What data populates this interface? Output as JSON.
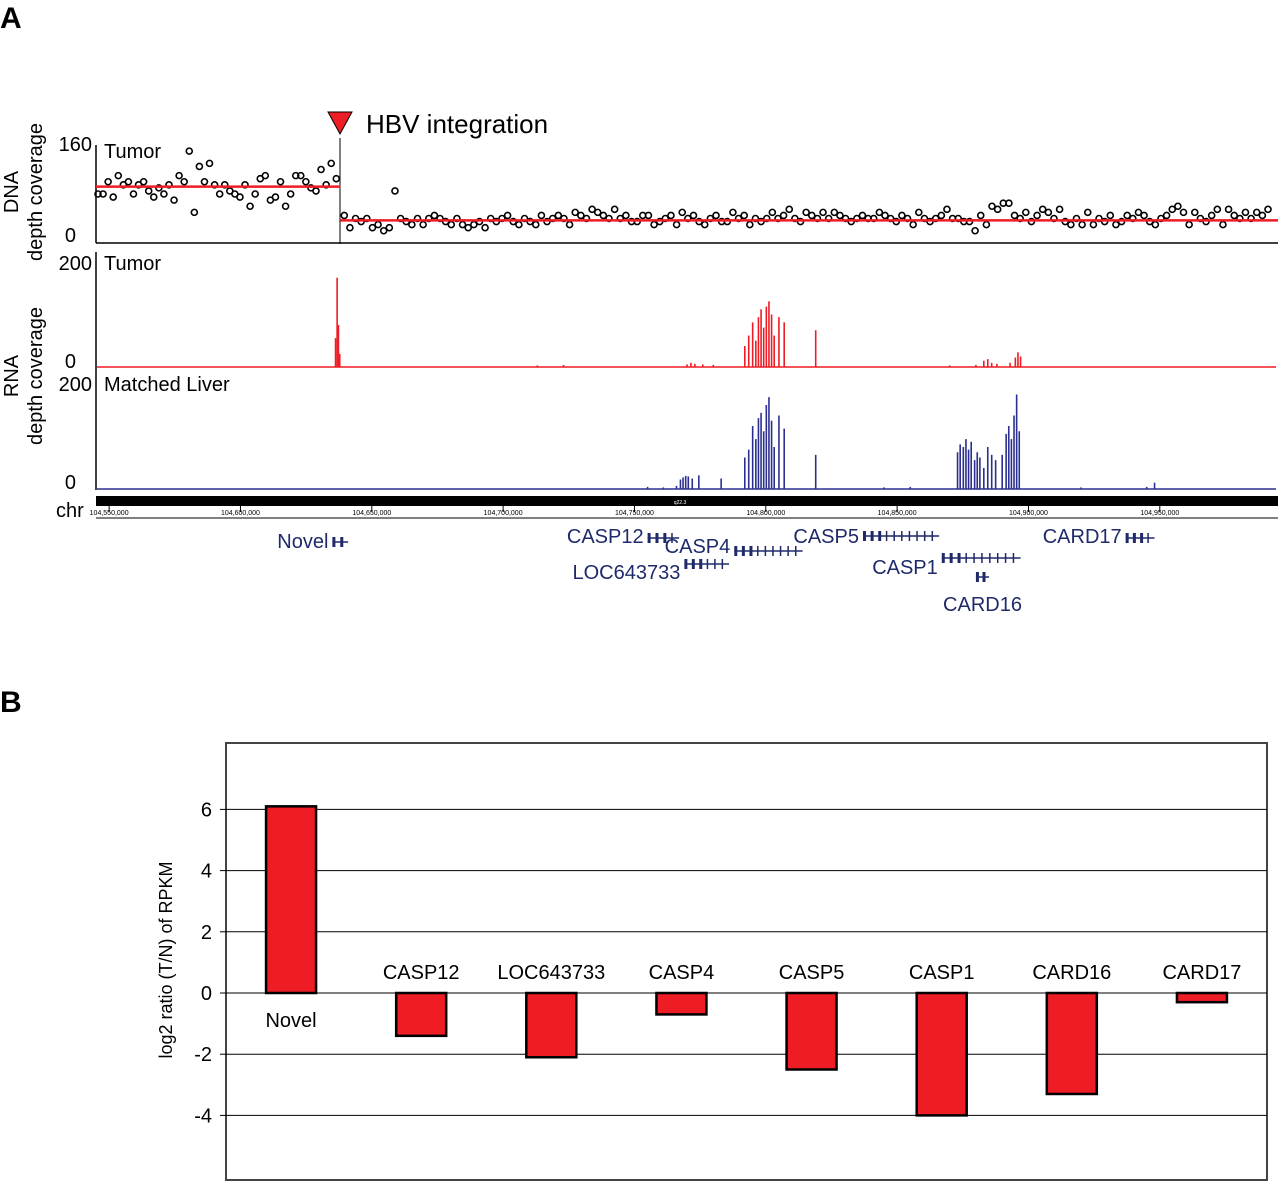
{
  "panel_a": {
    "label": "A",
    "integration_label": "HBV integration",
    "dna_axis_label_1": "DNA",
    "dna_axis_label_2": "depth coverage",
    "rna_axis_label_1": "RNA",
    "rna_axis_label_2": "depth coverage",
    "dna_tumor_label": "Tumor",
    "rna_tumor_label": "Tumor",
    "rna_liver_label": "Matched Liver",
    "chr_label": "chr",
    "band_label": "q22.3",
    "dna_ymax": "160",
    "dna_ymin": "0",
    "rna_tumor_ymax": "200",
    "rna_tumor_ymin": "0",
    "rna_liver_ymax": "200",
    "rna_liver_ymin": "0",
    "genomic_ticks": [
      "104,550,000",
      "104,600,000",
      "104,650,000",
      "104,700,000",
      "104,750,000",
      "104,800,000",
      "104,850,000",
      "104,900,000",
      "104,950,000"
    ],
    "genes": [
      {
        "name": "Novel",
        "start": 104635000,
        "end": 104641000
      },
      {
        "name": "CASP12",
        "start": 104755000,
        "end": 104767000
      },
      {
        "name": "LOC643733",
        "start": 104769000,
        "end": 104786000
      },
      {
        "name": "CASP4",
        "start": 104788000,
        "end": 104814000
      },
      {
        "name": "CASP5",
        "start": 104837000,
        "end": 104866000
      },
      {
        "name": "CASP1",
        "start": 104867000,
        "end": 104897000
      },
      {
        "name": "CARD16",
        "start": 104880000,
        "end": 104885000
      },
      {
        "name": "CARD17",
        "start": 104937000,
        "end": 104948000
      }
    ],
    "colors": {
      "tumor": "#ee1c24",
      "liver": "#2b2f8f",
      "gene": "#1f2a6b",
      "marker": "#ee1c24"
    },
    "chart_data": {
      "type": "scatter",
      "title": "",
      "x_range": [
        104545000,
        104995000
      ],
      "integration_position": 104638000,
      "dna_tumor_depth": {
        "ylim": [
          0,
          160
        ],
        "mean_before_integration": 92,
        "mean_after_integration": 37,
        "points_before": [
          80,
          80,
          100,
          75,
          110,
          95,
          100,
          80,
          95,
          100,
          85,
          75,
          90,
          80,
          95,
          70,
          110,
          100,
          150,
          50,
          125,
          100,
          130,
          95,
          80,
          95,
          85,
          80,
          75,
          95,
          60,
          80,
          105,
          110,
          70,
          75,
          100,
          60,
          80,
          110,
          110,
          100,
          90,
          85,
          120,
          95,
          130,
          105
        ],
        "points_after": [
          45,
          25,
          40,
          35,
          40,
          25,
          30,
          20,
          25,
          85,
          40,
          35,
          30,
          40,
          30,
          40,
          45,
          40,
          35,
          30,
          40,
          30,
          25,
          30,
          35,
          25,
          40,
          35,
          40,
          45,
          35,
          30,
          40,
          35,
          30,
          45,
          35,
          40,
          45,
          40,
          30,
          50,
          45,
          40,
          55,
          50,
          45,
          40,
          55,
          40,
          45,
          35,
          35,
          45,
          45,
          30,
          35,
          40,
          45,
          30,
          50,
          40,
          45,
          35,
          30,
          40,
          45,
          35,
          35,
          50,
          40,
          45,
          30,
          40,
          35,
          40,
          50,
          40,
          45,
          55,
          40,
          35,
          50,
          45,
          40,
          50,
          40,
          50,
          45,
          40,
          35,
          40,
          45,
          40,
          40,
          50,
          45,
          40,
          35,
          45,
          40,
          30,
          50,
          40,
          35,
          40,
          45,
          55,
          40,
          40,
          35,
          35,
          20,
          45,
          30,
          60,
          55,
          65,
          65,
          45,
          40,
          50,
          35,
          45,
          55,
          50,
          40,
          55,
          35,
          30,
          40,
          30,
          50,
          30,
          40,
          35,
          45,
          30,
          35,
          45,
          40,
          50,
          45,
          35,
          30,
          40,
          45,
          55,
          60,
          50,
          30,
          50,
          40,
          35,
          45,
          55,
          30,
          55,
          45,
          40,
          50,
          40,
          50,
          45,
          55
        ]
      },
      "rna_tumor_depth": {
        "ylim": [
          0,
          200
        ],
        "peaks": [
          {
            "x": 104636200,
            "y": 55
          },
          {
            "x": 104636800,
            "y": 170
          },
          {
            "x": 104637300,
            "y": 80
          },
          {
            "x": 104637800,
            "y": 25
          },
          {
            "x": 104713000,
            "y": 3
          },
          {
            "x": 104723000,
            "y": 4
          },
          {
            "x": 104770000,
            "y": 5
          },
          {
            "x": 104771500,
            "y": 8
          },
          {
            "x": 104773000,
            "y": 6
          },
          {
            "x": 104776000,
            "y": 5
          },
          {
            "x": 104780000,
            "y": 4
          },
          {
            "x": 104792000,
            "y": 40
          },
          {
            "x": 104793500,
            "y": 60
          },
          {
            "x": 104795000,
            "y": 85
          },
          {
            "x": 104796200,
            "y": 50
          },
          {
            "x": 104797200,
            "y": 95
          },
          {
            "x": 104798200,
            "y": 110
          },
          {
            "x": 104799200,
            "y": 75
          },
          {
            "x": 104800200,
            "y": 115
          },
          {
            "x": 104801200,
            "y": 125
          },
          {
            "x": 104802200,
            "y": 100
          },
          {
            "x": 104803200,
            "y": 60
          },
          {
            "x": 104805000,
            "y": 95
          },
          {
            "x": 104807000,
            "y": 85
          },
          {
            "x": 104819000,
            "y": 70
          },
          {
            "x": 104870000,
            "y": 3
          },
          {
            "x": 104880000,
            "y": 4
          },
          {
            "x": 104883000,
            "y": 12
          },
          {
            "x": 104884500,
            "y": 15
          },
          {
            "x": 104886000,
            "y": 8
          },
          {
            "x": 104888000,
            "y": 6
          },
          {
            "x": 104893000,
            "y": 8
          },
          {
            "x": 104895000,
            "y": 18
          },
          {
            "x": 104896000,
            "y": 28
          },
          {
            "x": 104897000,
            "y": 20
          }
        ]
      },
      "rna_liver_depth": {
        "ylim": [
          0,
          200
        ],
        "peaks": [
          {
            "x": 104755000,
            "y": 4
          },
          {
            "x": 104761000,
            "y": 3
          },
          {
            "x": 104766000,
            "y": 6
          },
          {
            "x": 104767500,
            "y": 18
          },
          {
            "x": 104768500,
            "y": 22
          },
          {
            "x": 104769500,
            "y": 25
          },
          {
            "x": 104770500,
            "y": 24
          },
          {
            "x": 104772000,
            "y": 20
          },
          {
            "x": 104774500,
            "y": 26
          },
          {
            "x": 104783000,
            "y": 20
          },
          {
            "x": 104792000,
            "y": 60
          },
          {
            "x": 104793500,
            "y": 75
          },
          {
            "x": 104795000,
            "y": 120
          },
          {
            "x": 104796200,
            "y": 95
          },
          {
            "x": 104797200,
            "y": 135
          },
          {
            "x": 104798200,
            "y": 145
          },
          {
            "x": 104799200,
            "y": 110
          },
          {
            "x": 104800200,
            "y": 160
          },
          {
            "x": 104801200,
            "y": 175
          },
          {
            "x": 104802200,
            "y": 130
          },
          {
            "x": 104803200,
            "y": 80
          },
          {
            "x": 104805000,
            "y": 140
          },
          {
            "x": 104807000,
            "y": 115
          },
          {
            "x": 104819000,
            "y": 65
          },
          {
            "x": 104845000,
            "y": 3
          },
          {
            "x": 104855000,
            "y": 4
          },
          {
            "x": 104873000,
            "y": 70
          },
          {
            "x": 104874000,
            "y": 85
          },
          {
            "x": 104875200,
            "y": 80
          },
          {
            "x": 104876200,
            "y": 95
          },
          {
            "x": 104877200,
            "y": 75
          },
          {
            "x": 104878200,
            "y": 90
          },
          {
            "x": 104879500,
            "y": 55
          },
          {
            "x": 104880500,
            "y": 70
          },
          {
            "x": 104881500,
            "y": 60
          },
          {
            "x": 104883000,
            "y": 40
          },
          {
            "x": 104884500,
            "y": 80
          },
          {
            "x": 104886000,
            "y": 65
          },
          {
            "x": 104887500,
            "y": 55
          },
          {
            "x": 104890000,
            "y": 65
          },
          {
            "x": 104891500,
            "y": 105
          },
          {
            "x": 104892500,
            "y": 120
          },
          {
            "x": 104893500,
            "y": 95
          },
          {
            "x": 104894500,
            "y": 140
          },
          {
            "x": 104895500,
            "y": 180
          },
          {
            "x": 104896500,
            "y": 110
          },
          {
            "x": 104920000,
            "y": 3
          },
          {
            "x": 104945000,
            "y": 4
          },
          {
            "x": 104948000,
            "y": 12
          }
        ]
      }
    }
  },
  "panel_b": {
    "label": "B",
    "chart_data": {
      "type": "bar",
      "title": "",
      "xlabel": "",
      "ylabel": "log2 ratio (T/N) of RPKM",
      "ylim": [
        -6,
        8
      ],
      "yticks": [
        "6",
        "4",
        "2",
        "0",
        "-2",
        "-4"
      ],
      "grid": true,
      "categories": [
        "Novel",
        "CASP12",
        "LOC643733",
        "CASP4",
        "CASP5",
        "CASP1",
        "CARD16",
        "CARD17"
      ],
      "values": [
        6.1,
        -1.4,
        -2.1,
        -0.7,
        -2.5,
        -4.0,
        -3.3,
        -0.3
      ],
      "bar_color": "#ee1c24"
    }
  }
}
